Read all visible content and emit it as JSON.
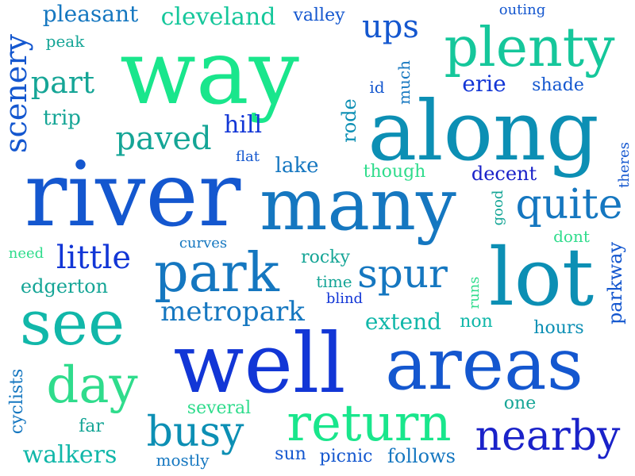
{
  "colors": {
    "green": "#19e68c",
    "teal": "#15a596",
    "aqua": "#11b7a9",
    "cyan": "#0c8fb4",
    "steel": "#1577c0",
    "blue": "#1457cf",
    "royal": "#1236d6",
    "navy": "#1a22c9",
    "mint": "#2fdc8c"
  },
  "words": [
    {
      "text": "way"
    },
    {
      "text": "along"
    },
    {
      "text": "river"
    },
    {
      "text": "many"
    },
    {
      "text": "well"
    },
    {
      "text": "areas"
    },
    {
      "text": "lot"
    },
    {
      "text": "plenty"
    },
    {
      "text": "park"
    },
    {
      "text": "see"
    },
    {
      "text": "return"
    },
    {
      "text": "day"
    },
    {
      "text": "nearby"
    },
    {
      "text": "quite"
    },
    {
      "text": "spur"
    },
    {
      "text": "busy"
    },
    {
      "text": "little"
    },
    {
      "text": "paved"
    },
    {
      "text": "part"
    },
    {
      "text": "ups"
    },
    {
      "text": "scenery"
    },
    {
      "text": "metropark"
    },
    {
      "text": "extend"
    },
    {
      "text": "walkers"
    },
    {
      "text": "pleasant"
    },
    {
      "text": "cleveland"
    },
    {
      "text": "valley"
    },
    {
      "text": "peak"
    },
    {
      "text": "trip"
    },
    {
      "text": "hill"
    },
    {
      "text": "rode"
    },
    {
      "text": "id"
    },
    {
      "text": "much"
    },
    {
      "text": "erie"
    },
    {
      "text": "shade"
    },
    {
      "text": "outing"
    },
    {
      "text": "flat"
    },
    {
      "text": "lake"
    },
    {
      "text": "though"
    },
    {
      "text": "decent"
    },
    {
      "text": "good"
    },
    {
      "text": "theres"
    },
    {
      "text": "dont"
    },
    {
      "text": "curves"
    },
    {
      "text": "need"
    },
    {
      "text": "rocky"
    },
    {
      "text": "edgerton"
    },
    {
      "text": "time"
    },
    {
      "text": "blind"
    },
    {
      "text": "runs"
    },
    {
      "text": "parkway"
    },
    {
      "text": "non"
    },
    {
      "text": "hours"
    },
    {
      "text": "cyclists"
    },
    {
      "text": "several"
    },
    {
      "text": "far"
    },
    {
      "text": "one"
    },
    {
      "text": "mostly"
    },
    {
      "text": "sun"
    },
    {
      "text": "picnic"
    },
    {
      "text": "follows"
    }
  ]
}
